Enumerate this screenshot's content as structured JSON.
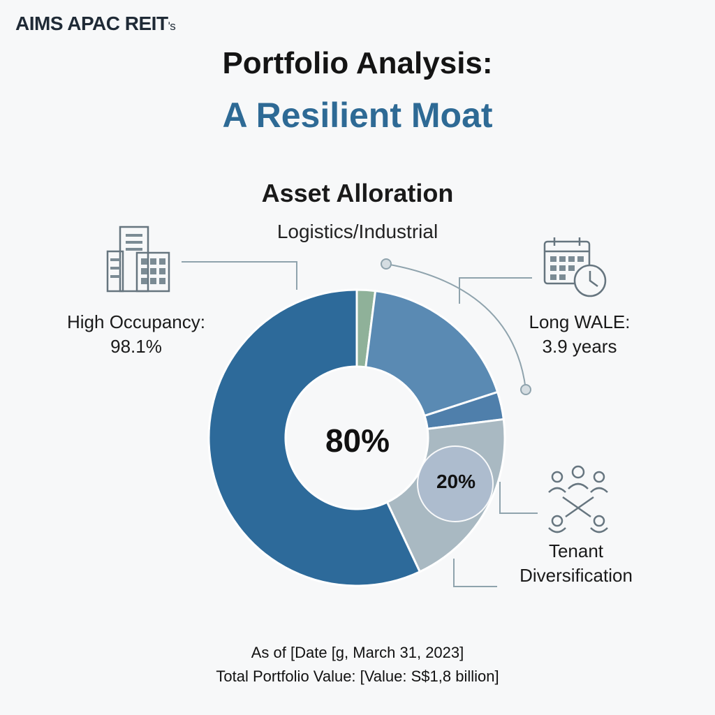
{
  "header": {
    "brand": "AIMS APAC REIT",
    "brand_suffix": "'s",
    "title_line1": "Portfolio Analysis:",
    "title_line2": "A Resilient Moat"
  },
  "chart_data": {
    "type": "pie",
    "title": "Asset Alloration",
    "subtitle": "Logistics/Industrial",
    "center_label": "80%",
    "inner_label": "20%",
    "slices": [
      {
        "value": 2,
        "color": "#8fb199"
      },
      {
        "value": 18,
        "color": "#5a8ab3"
      },
      {
        "value": 3,
        "color": "#4f7fab"
      },
      {
        "value": 20,
        "color": "#a9b9c2"
      },
      {
        "value": 57,
        "color": "#2d6a9a"
      }
    ]
  },
  "metrics": {
    "occupancy": {
      "label": "High Occupancy:",
      "value": "98.1%",
      "icon": "buildings-icon"
    },
    "wale": {
      "label": "Long WALE:",
      "value": "3.9 years",
      "icon": "calendar-clock-icon"
    },
    "tenant": {
      "label_line1": "Tenant",
      "label_line2": "Diversification",
      "icon": "people-network-icon"
    }
  },
  "footer": {
    "line1": "As of [Date [g, March 31, 2023]",
    "line2": "Total Portfolio Value: [Value: S$1,8 billion]"
  },
  "colors": {
    "accent": "#2e6a95",
    "connector": "#8fa3ad"
  }
}
